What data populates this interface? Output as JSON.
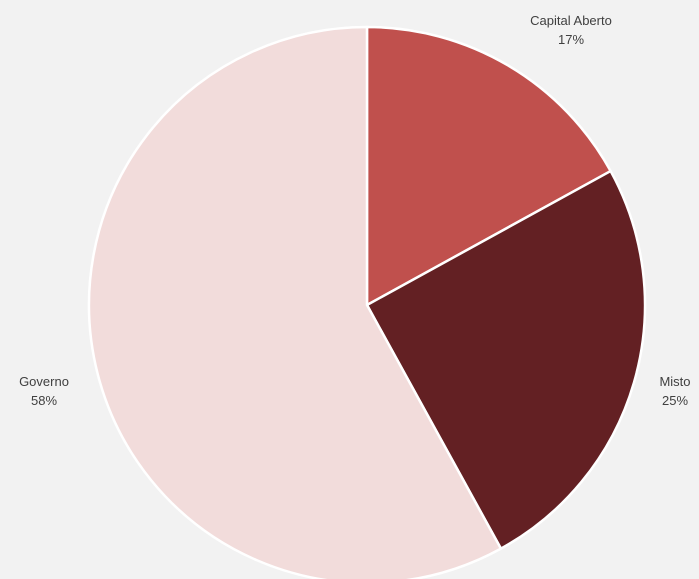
{
  "chart_data": {
    "type": "pie",
    "title": "",
    "slices": [
      {
        "label": "Capital Aberto",
        "value": 17,
        "value_label": "17%",
        "color": "#c0504d"
      },
      {
        "label": "Misto",
        "value": 25,
        "value_label": "25%",
        "color": "#632023"
      },
      {
        "label": "Governo",
        "value": 58,
        "value_label": "58%",
        "color": "#f2dcdb"
      }
    ],
    "start_angle_deg": 0,
    "direction": "clockwise",
    "slice_border_color": "#ffffff",
    "legend": "none",
    "data_labels": "outside"
  }
}
